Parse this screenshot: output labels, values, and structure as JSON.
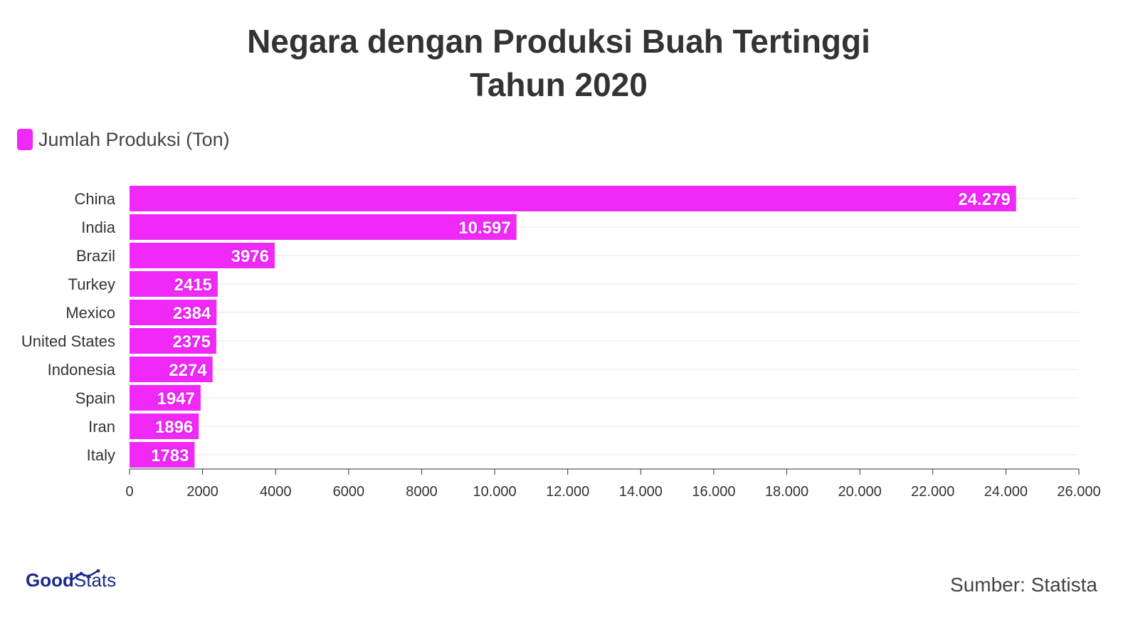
{
  "title": {
    "line1": "Negara dengan Produksi Buah Tertinggi",
    "line2": "Tahun 2020"
  },
  "legend": {
    "label": "Jumlah Produksi (Ton)"
  },
  "colors": {
    "bar": "#f028f8",
    "grid": "#e6e6e6",
    "axis": "#333333",
    "text": "#333333",
    "logo": "#1a2a8c"
  },
  "chart_data": {
    "type": "bar",
    "orientation": "horizontal",
    "categories": [
      "China",
      "India",
      "Brazil",
      "Turkey",
      "Mexico",
      "United States",
      "Indonesia",
      "Spain",
      "Iran",
      "Italy"
    ],
    "series": [
      {
        "name": "Jumlah Produksi (Ton)",
        "values": [
          24279,
          10597,
          3976,
          2415,
          2384,
          2375,
          2274,
          1947,
          1896,
          1783
        ]
      }
    ],
    "value_labels": [
      "24.279",
      "10.597",
      "3976",
      "2415",
      "2384",
      "2375",
      "2274",
      "1947",
      "1896",
      "1783"
    ],
    "xlim": [
      0,
      26000
    ],
    "x_ticks": [
      0,
      2000,
      4000,
      6000,
      8000,
      10000,
      12000,
      14000,
      16000,
      18000,
      20000,
      22000,
      24000,
      26000
    ],
    "x_tick_labels": [
      "0",
      "2000",
      "4000",
      "6000",
      "8000",
      "10.000",
      "12.000",
      "14.000",
      "16.000",
      "18.000",
      "20.000",
      "22.000",
      "24.000",
      "26.000"
    ],
    "grid": true,
    "legend_position": "top-left"
  },
  "footer": {
    "logo_good": "Good",
    "logo_stats": "Stats",
    "source": "Sumber: Statista"
  }
}
